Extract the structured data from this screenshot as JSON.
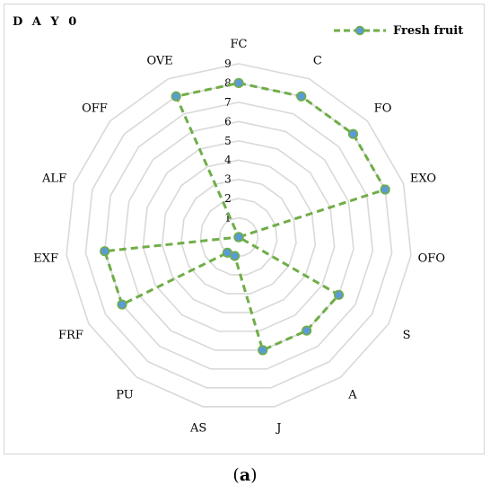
{
  "day_label": "D A Y   0",
  "caption": {
    "open": "(",
    "letter": "a",
    "close": ")"
  },
  "colors": {
    "line": "#70AD47",
    "marker": "#5B9BD5",
    "grid": "#D9D9D9"
  },
  "chart_data": {
    "type": "radar",
    "title": "",
    "categories": [
      "FC",
      "C",
      "FO",
      "EXO",
      "OFO",
      "S",
      "A",
      "J",
      "AS",
      "PU",
      "FRF",
      "EXF",
      "ALF",
      "OFF",
      "OVE"
    ],
    "ticks": [
      "1",
      "2",
      "3",
      "4",
      "5",
      "6",
      "7",
      "8",
      "9"
    ],
    "rlim": [
      0,
      9
    ],
    "grid": true,
    "legend_position": "top-right",
    "series": [
      {
        "name": "Fresh fruit",
        "values": [
          8,
          8,
          8,
          8,
          0,
          6,
          6,
          6,
          1,
          1,
          7,
          7,
          0,
          0,
          8
        ]
      }
    ]
  }
}
